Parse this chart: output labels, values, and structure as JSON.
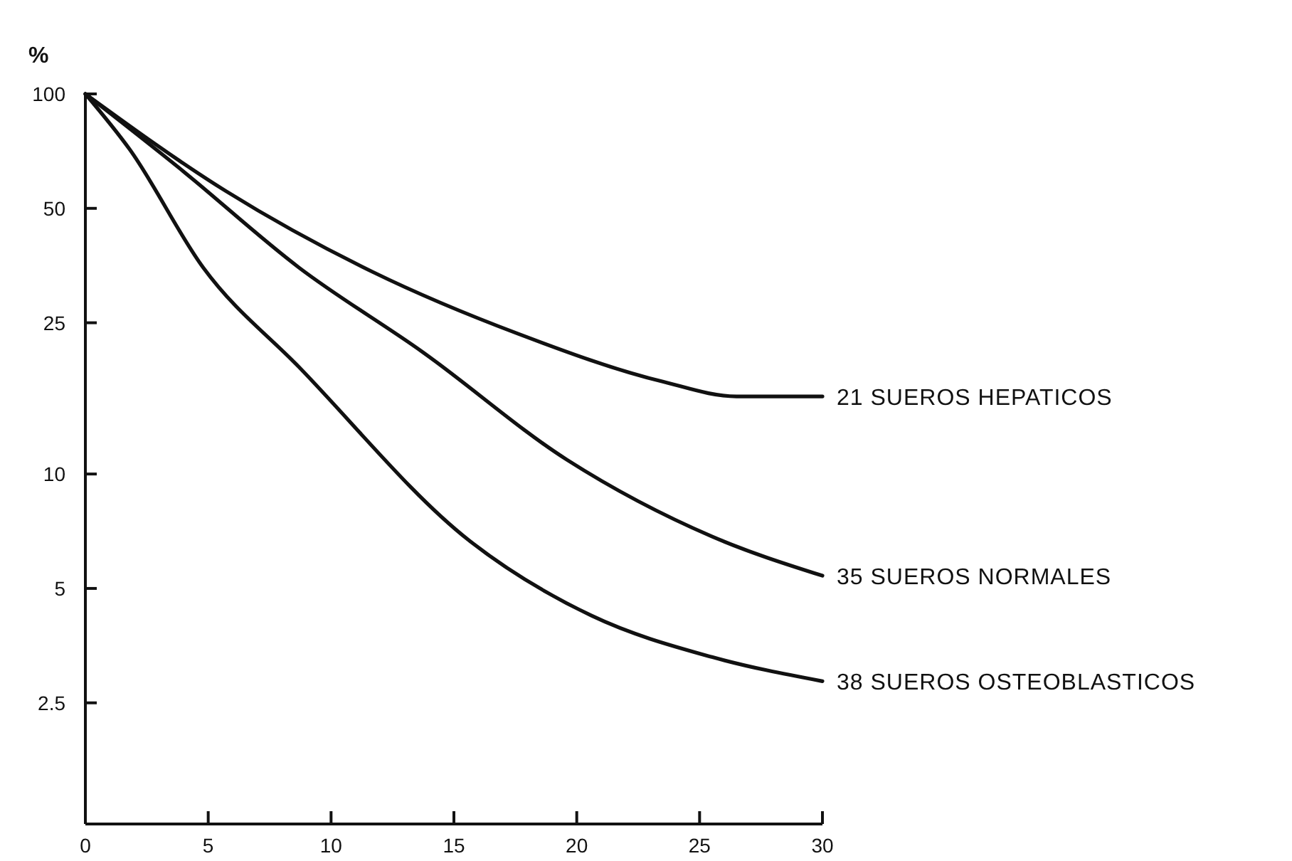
{
  "chart_data": {
    "type": "line",
    "ylabel": "%",
    "log": "y",
    "xlim": [
      0,
      30
    ],
    "xticks": [
      0,
      5,
      10,
      15,
      20,
      25,
      30
    ],
    "ylim": [
      1.2,
      100
    ],
    "yticks": [
      100,
      50,
      25,
      10,
      5,
      2.5
    ],
    "line_style": "solid",
    "series": [
      {
        "name": "21 SUEROS HEPATICOS",
        "color": "#111111",
        "x": [
          0,
          5.7,
          11.7,
          17.6,
          23.5,
          26.5,
          30
        ],
        "values": [
          100,
          55.6,
          34,
          23.4,
          17.5,
          16,
          16
        ]
      },
      {
        "name": "35 SUEROS NORMALES",
        "color": "#111111",
        "x": [
          0,
          3.8,
          8.7,
          13.7,
          19.6,
          25.5,
          30
        ],
        "values": [
          100,
          64,
          34.9,
          21,
          10.9,
          6.85,
          5.4
        ]
      },
      {
        "name": "38 SUEROS OSTEOBLASTICOS",
        "color": "#111111",
        "x": [
          0,
          1.8,
          4.8,
          8.7,
          15.6,
          20.6,
          25.5,
          30
        ],
        "values": [
          100,
          71.5,
          34.9,
          19.1,
          6.7,
          4.24,
          3.3,
          2.85
        ]
      }
    ]
  }
}
